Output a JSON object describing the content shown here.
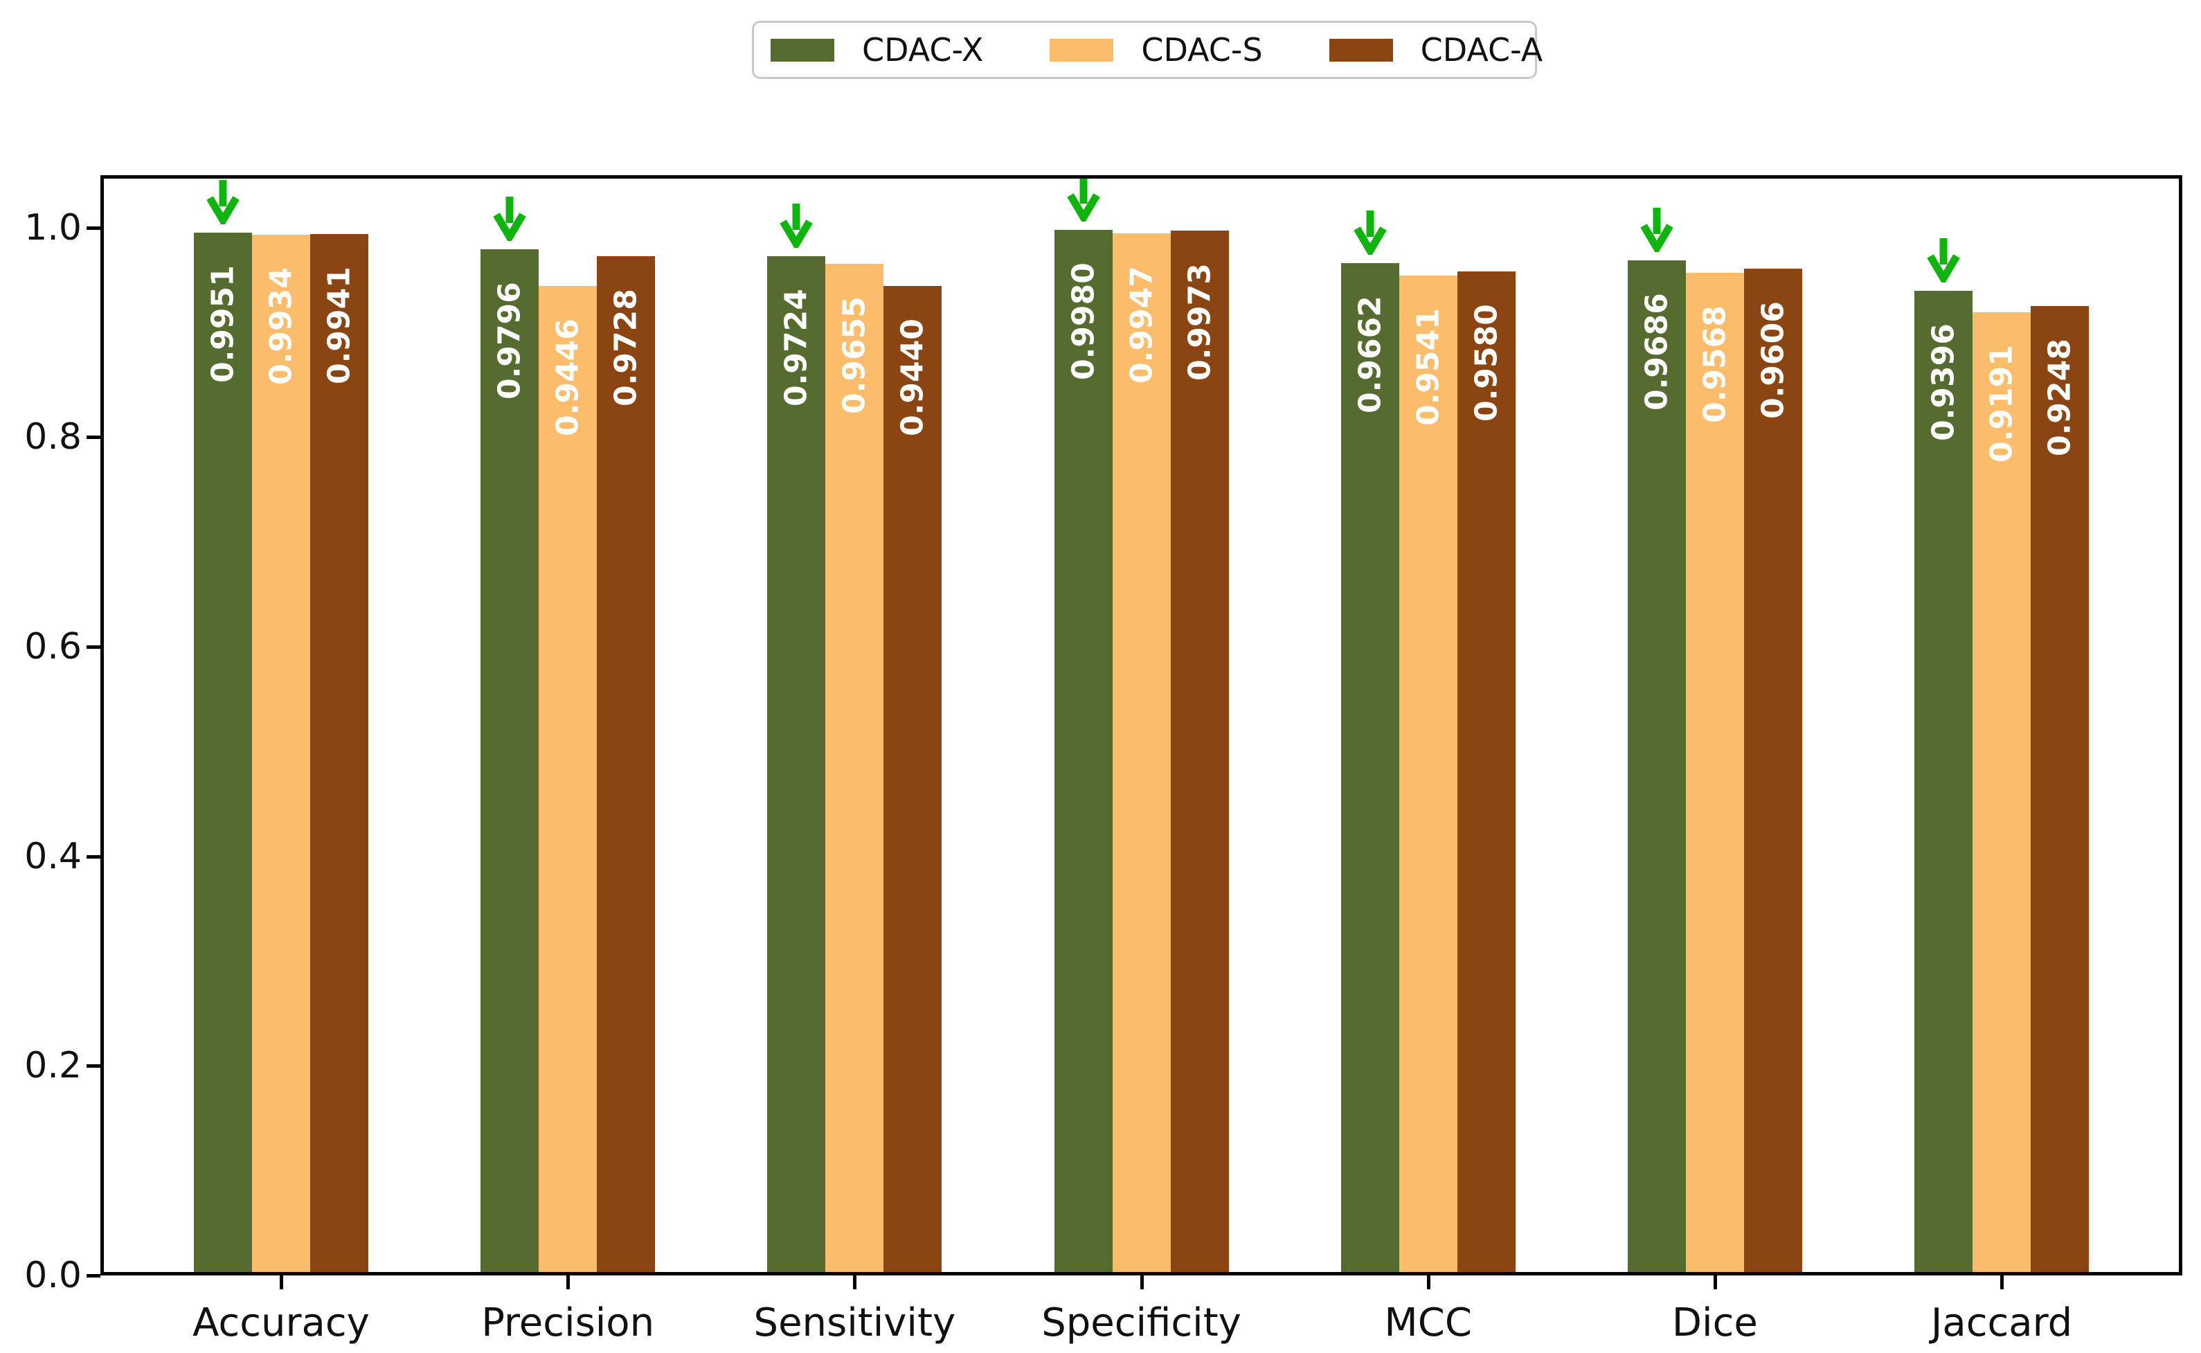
{
  "chart_data": {
    "type": "bar",
    "title": "",
    "xlabel": "",
    "ylabel": "",
    "categories": [
      "Accuracy",
      "Precision",
      "Sensitivity",
      "Specificity",
      "MCC",
      "Dice",
      "Jaccard"
    ],
    "series": [
      {
        "name": "CDAC-X",
        "color": "#556B2F",
        "values": [
          0.9951,
          0.9796,
          0.9724,
          0.998,
          0.9662,
          0.9686,
          0.9396
        ]
      },
      {
        "name": "CDAC-S",
        "color": "#FBBD6C",
        "values": [
          0.9934,
          0.9446,
          0.9655,
          0.9947,
          0.9541,
          0.9568,
          0.9191
        ]
      },
      {
        "name": "CDAC-A",
        "color": "#8B4513",
        "values": [
          0.9941,
          0.9728,
          0.944,
          0.9973,
          0.958,
          0.9606,
          0.9248
        ]
      }
    ],
    "value_labels": {
      "decimals": 4,
      "rotation_deg": 90,
      "color": "#ffffff",
      "bold": true
    },
    "annotations": {
      "symbol": "down-arrow",
      "arrow_color": "#0FB40F",
      "arrow_over_series": "CDAC-X",
      "on_every_category": true
    },
    "yticks": [
      "0.0",
      "0.2",
      "0.4",
      "0.6",
      "0.8",
      "1.0"
    ],
    "ytick_values": [
      0.0,
      0.2,
      0.4,
      0.6,
      0.8,
      1.0
    ],
    "ylim": [
      0,
      1.05
    ],
    "grid": false,
    "legend": {
      "position": "top-center",
      "labels": [
        "CDAC-X",
        "CDAC-S",
        "CDAC-A"
      ]
    }
  }
}
